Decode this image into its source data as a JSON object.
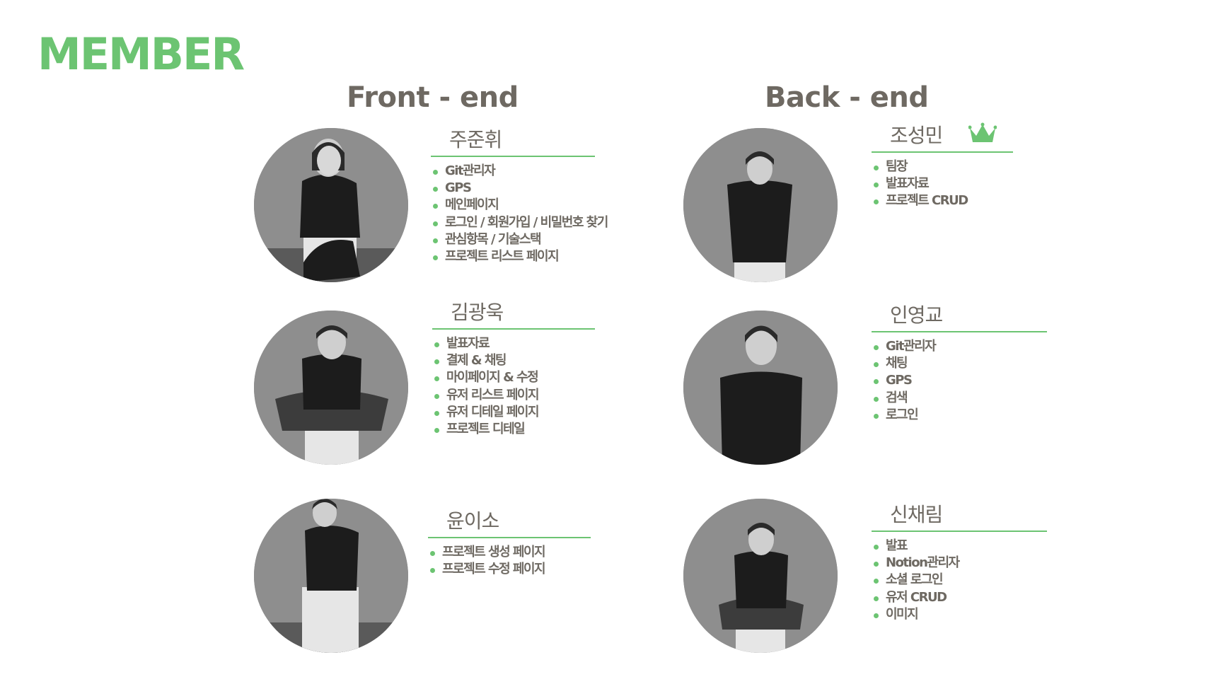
{
  "page": {
    "title": "MEMBER"
  },
  "accent_color": "#6cc472",
  "text_color": "#6e6962",
  "columns": [
    {
      "label": "Front - end"
    },
    {
      "label": "Back - end"
    }
  ],
  "members": [
    {
      "name": "주준휘",
      "roles": [
        "Git관리자",
        "GPS",
        "메인페이지",
        "로그인 / 회원가입 / 비밀번호 찾기",
        "관심항목 / 기술스택",
        "프로젝트 리스트 페이지"
      ]
    },
    {
      "name": "김광욱",
      "roles": [
        "발표자료",
        "결제 & 채팅",
        "마이페이지 & 수정",
        "유저 리스트 페이지",
        "유저 디테일 페이지",
        "프로젝트 디테일"
      ]
    },
    {
      "name": "윤이소",
      "roles": [
        "프로젝트 생성 페이지",
        "프로젝트 수정 페이지"
      ]
    },
    {
      "name": "조성민",
      "leader_icon": "crown-icon",
      "roles": [
        "팀장",
        "발표자료",
        "프로젝트 CRUD"
      ]
    },
    {
      "name": "인영교",
      "roles": [
        "Git관리자",
        "채팅",
        "GPS",
        "검색",
        "로그인"
      ]
    },
    {
      "name": "신채림",
      "roles": [
        "발표",
        "Notion관리자",
        "소셜 로그인",
        "유저 CRUD",
        "이미지"
      ]
    }
  ]
}
